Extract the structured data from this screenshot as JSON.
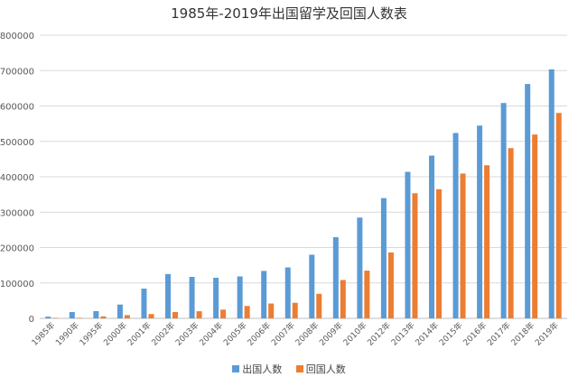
{
  "chart_data": {
    "type": "bar",
    "title": "1985年-2019年出国留学及回国人数表",
    "xlabel": "",
    "ylabel": "",
    "ylim": [
      0,
      800000
    ],
    "yticks": [
      "0",
      "100000",
      "200000",
      "300000",
      "400000",
      "500000",
      "600000",
      "700000",
      "800000"
    ],
    "grid": true,
    "legend_position": "bottom",
    "categories": [
      "1985年",
      "1990年",
      "1995年",
      "2000年",
      "2001年",
      "2002年",
      "2003年",
      "2004年",
      "2005年",
      "2006年",
      "2007年",
      "2008年",
      "2009年",
      "2010年",
      "2012年",
      "2013年",
      "2014年",
      "2015年",
      "2016年",
      "2017年",
      "2018年",
      "2019年"
    ],
    "series": [
      {
        "name": "出国人数",
        "color": "#5b9bd5",
        "values": [
          4888,
          18000,
          20381,
          38989,
          83973,
          125179,
          117307,
          114682,
          118515,
          134000,
          144000,
          179800,
          229300,
          284700,
          339700,
          413900,
          459800,
          523700,
          544500,
          608400,
          662100,
          703500
        ]
      },
      {
        "name": "回国人数",
        "color": "#ed7d31",
        "values": [
          1424,
          1593,
          5750,
          9121,
          12243,
          17945,
          20152,
          24726,
          34987,
          42000,
          44000,
          69300,
          108300,
          134800,
          186200,
          353500,
          364800,
          409100,
          432500,
          480900,
          519400,
          580300
        ]
      }
    ]
  }
}
